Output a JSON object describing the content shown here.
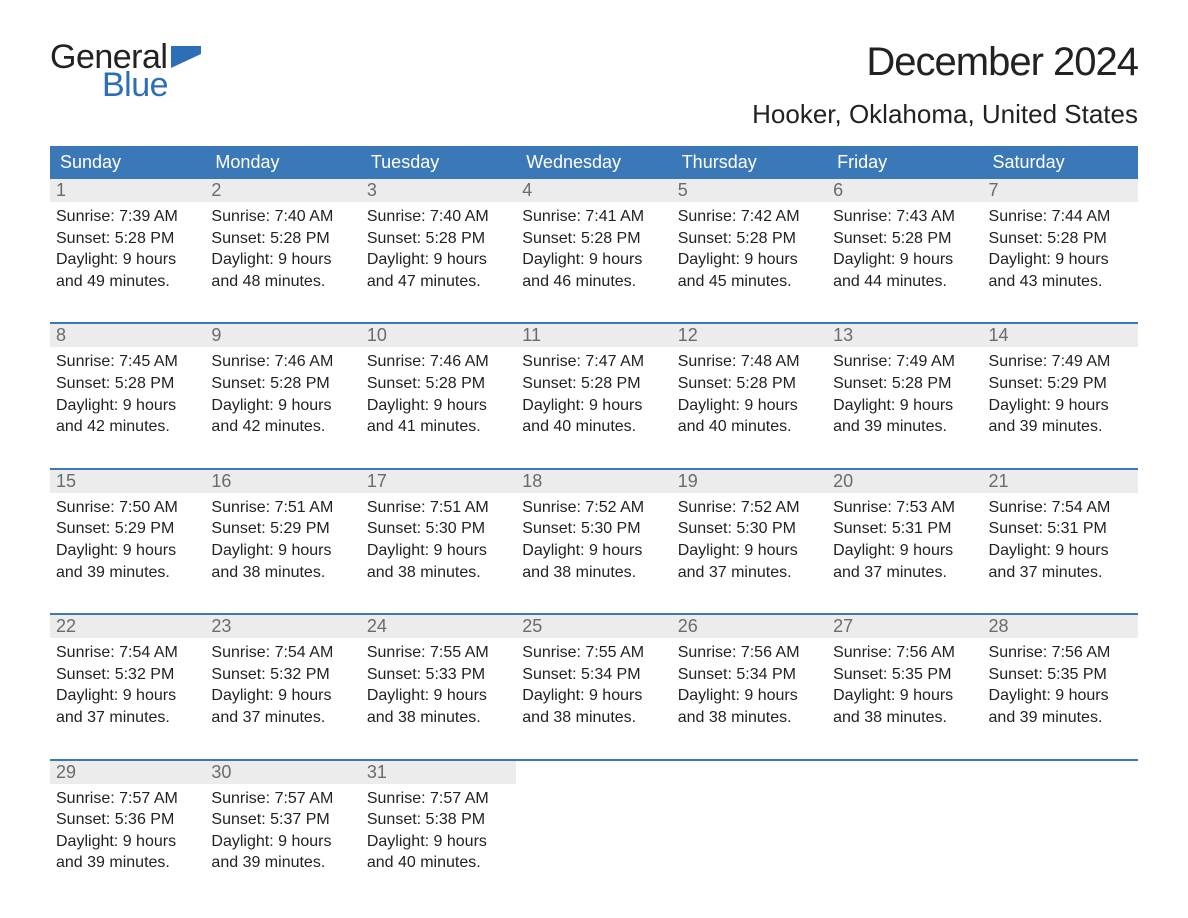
{
  "logo": {
    "word1": "General",
    "word2": "Blue",
    "flag_color": "#2c6fb7"
  },
  "title": "December 2024",
  "location": "Hooker, Oklahoma, United States",
  "colors": {
    "header_bg": "#3b78b8",
    "header_text": "#ffffff",
    "daynum_bg": "#ececec",
    "daynum_text": "#6b6b6b",
    "body_text": "#222222",
    "rule": "#3b78b8",
    "page_bg": "#ffffff"
  },
  "typography": {
    "title_fontsize": 40,
    "location_fontsize": 26,
    "header_fontsize": 18,
    "daynum_fontsize": 18,
    "cell_fontsize": 16,
    "font_family": "Arial"
  },
  "day_headers": [
    "Sunday",
    "Monday",
    "Tuesday",
    "Wednesday",
    "Thursday",
    "Friday",
    "Saturday"
  ],
  "weeks": [
    [
      {
        "n": "1",
        "sunrise": "Sunrise: 7:39 AM",
        "sunset": "Sunset: 5:28 PM",
        "dl1": "Daylight: 9 hours",
        "dl2": "and 49 minutes."
      },
      {
        "n": "2",
        "sunrise": "Sunrise: 7:40 AM",
        "sunset": "Sunset: 5:28 PM",
        "dl1": "Daylight: 9 hours",
        "dl2": "and 48 minutes."
      },
      {
        "n": "3",
        "sunrise": "Sunrise: 7:40 AM",
        "sunset": "Sunset: 5:28 PM",
        "dl1": "Daylight: 9 hours",
        "dl2": "and 47 minutes."
      },
      {
        "n": "4",
        "sunrise": "Sunrise: 7:41 AM",
        "sunset": "Sunset: 5:28 PM",
        "dl1": "Daylight: 9 hours",
        "dl2": "and 46 minutes."
      },
      {
        "n": "5",
        "sunrise": "Sunrise: 7:42 AM",
        "sunset": "Sunset: 5:28 PM",
        "dl1": "Daylight: 9 hours",
        "dl2": "and 45 minutes."
      },
      {
        "n": "6",
        "sunrise": "Sunrise: 7:43 AM",
        "sunset": "Sunset: 5:28 PM",
        "dl1": "Daylight: 9 hours",
        "dl2": "and 44 minutes."
      },
      {
        "n": "7",
        "sunrise": "Sunrise: 7:44 AM",
        "sunset": "Sunset: 5:28 PM",
        "dl1": "Daylight: 9 hours",
        "dl2": "and 43 minutes."
      }
    ],
    [
      {
        "n": "8",
        "sunrise": "Sunrise: 7:45 AM",
        "sunset": "Sunset: 5:28 PM",
        "dl1": "Daylight: 9 hours",
        "dl2": "and 42 minutes."
      },
      {
        "n": "9",
        "sunrise": "Sunrise: 7:46 AM",
        "sunset": "Sunset: 5:28 PM",
        "dl1": "Daylight: 9 hours",
        "dl2": "and 42 minutes."
      },
      {
        "n": "10",
        "sunrise": "Sunrise: 7:46 AM",
        "sunset": "Sunset: 5:28 PM",
        "dl1": "Daylight: 9 hours",
        "dl2": "and 41 minutes."
      },
      {
        "n": "11",
        "sunrise": "Sunrise: 7:47 AM",
        "sunset": "Sunset: 5:28 PM",
        "dl1": "Daylight: 9 hours",
        "dl2": "and 40 minutes."
      },
      {
        "n": "12",
        "sunrise": "Sunrise: 7:48 AM",
        "sunset": "Sunset: 5:28 PM",
        "dl1": "Daylight: 9 hours",
        "dl2": "and 40 minutes."
      },
      {
        "n": "13",
        "sunrise": "Sunrise: 7:49 AM",
        "sunset": "Sunset: 5:28 PM",
        "dl1": "Daylight: 9 hours",
        "dl2": "and 39 minutes."
      },
      {
        "n": "14",
        "sunrise": "Sunrise: 7:49 AM",
        "sunset": "Sunset: 5:29 PM",
        "dl1": "Daylight: 9 hours",
        "dl2": "and 39 minutes."
      }
    ],
    [
      {
        "n": "15",
        "sunrise": "Sunrise: 7:50 AM",
        "sunset": "Sunset: 5:29 PM",
        "dl1": "Daylight: 9 hours",
        "dl2": "and 39 minutes."
      },
      {
        "n": "16",
        "sunrise": "Sunrise: 7:51 AM",
        "sunset": "Sunset: 5:29 PM",
        "dl1": "Daylight: 9 hours",
        "dl2": "and 38 minutes."
      },
      {
        "n": "17",
        "sunrise": "Sunrise: 7:51 AM",
        "sunset": "Sunset: 5:30 PM",
        "dl1": "Daylight: 9 hours",
        "dl2": "and 38 minutes."
      },
      {
        "n": "18",
        "sunrise": "Sunrise: 7:52 AM",
        "sunset": "Sunset: 5:30 PM",
        "dl1": "Daylight: 9 hours",
        "dl2": "and 38 minutes."
      },
      {
        "n": "19",
        "sunrise": "Sunrise: 7:52 AM",
        "sunset": "Sunset: 5:30 PM",
        "dl1": "Daylight: 9 hours",
        "dl2": "and 37 minutes."
      },
      {
        "n": "20",
        "sunrise": "Sunrise: 7:53 AM",
        "sunset": "Sunset: 5:31 PM",
        "dl1": "Daylight: 9 hours",
        "dl2": "and 37 minutes."
      },
      {
        "n": "21",
        "sunrise": "Sunrise: 7:54 AM",
        "sunset": "Sunset: 5:31 PM",
        "dl1": "Daylight: 9 hours",
        "dl2": "and 37 minutes."
      }
    ],
    [
      {
        "n": "22",
        "sunrise": "Sunrise: 7:54 AM",
        "sunset": "Sunset: 5:32 PM",
        "dl1": "Daylight: 9 hours",
        "dl2": "and 37 minutes."
      },
      {
        "n": "23",
        "sunrise": "Sunrise: 7:54 AM",
        "sunset": "Sunset: 5:32 PM",
        "dl1": "Daylight: 9 hours",
        "dl2": "and 37 minutes."
      },
      {
        "n": "24",
        "sunrise": "Sunrise: 7:55 AM",
        "sunset": "Sunset: 5:33 PM",
        "dl1": "Daylight: 9 hours",
        "dl2": "and 38 minutes."
      },
      {
        "n": "25",
        "sunrise": "Sunrise: 7:55 AM",
        "sunset": "Sunset: 5:34 PM",
        "dl1": "Daylight: 9 hours",
        "dl2": "and 38 minutes."
      },
      {
        "n": "26",
        "sunrise": "Sunrise: 7:56 AM",
        "sunset": "Sunset: 5:34 PM",
        "dl1": "Daylight: 9 hours",
        "dl2": "and 38 minutes."
      },
      {
        "n": "27",
        "sunrise": "Sunrise: 7:56 AM",
        "sunset": "Sunset: 5:35 PM",
        "dl1": "Daylight: 9 hours",
        "dl2": "and 38 minutes."
      },
      {
        "n": "28",
        "sunrise": "Sunrise: 7:56 AM",
        "sunset": "Sunset: 5:35 PM",
        "dl1": "Daylight: 9 hours",
        "dl2": "and 39 minutes."
      }
    ],
    [
      {
        "n": "29",
        "sunrise": "Sunrise: 7:57 AM",
        "sunset": "Sunset: 5:36 PM",
        "dl1": "Daylight: 9 hours",
        "dl2": "and 39 minutes."
      },
      {
        "n": "30",
        "sunrise": "Sunrise: 7:57 AM",
        "sunset": "Sunset: 5:37 PM",
        "dl1": "Daylight: 9 hours",
        "dl2": "and 39 minutes."
      },
      {
        "n": "31",
        "sunrise": "Sunrise: 7:57 AM",
        "sunset": "Sunset: 5:38 PM",
        "dl1": "Daylight: 9 hours",
        "dl2": "and 40 minutes."
      },
      null,
      null,
      null,
      null
    ]
  ]
}
